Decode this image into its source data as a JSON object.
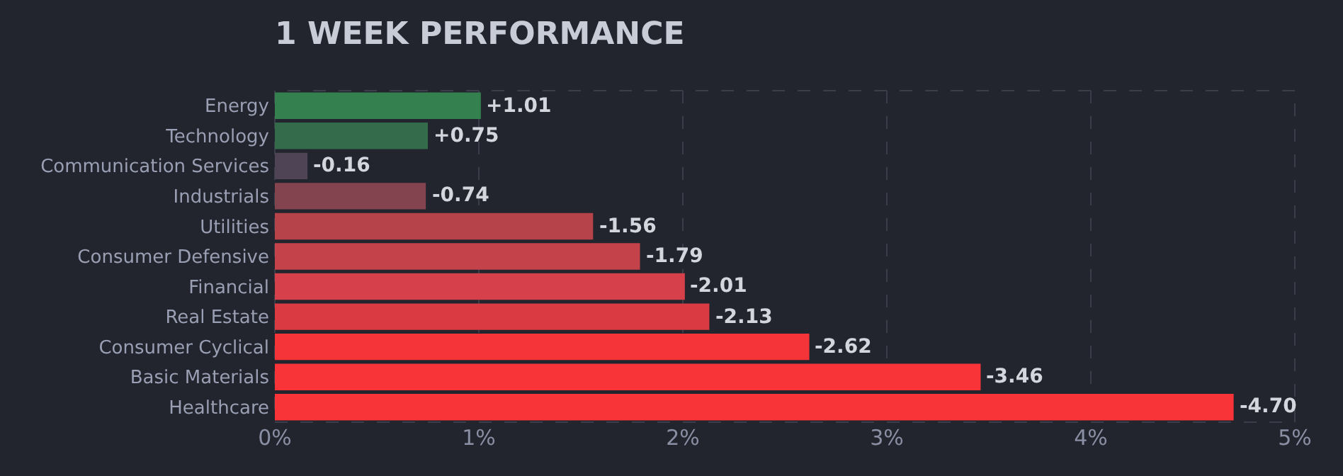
{
  "chart_data": {
    "type": "bar",
    "orientation": "horizontal",
    "title": "1 WEEK PERFORMANCE",
    "categories": [
      "Energy",
      "Technology",
      "Communication Services",
      "Industrials",
      "Utilities",
      "Consumer Defensive",
      "Financial",
      "Real Estate",
      "Consumer Cyclical",
      "Basic Materials",
      "Healthcare"
    ],
    "values": [
      1.01,
      0.75,
      -0.16,
      -0.74,
      -1.56,
      -1.79,
      -2.01,
      -2.13,
      -2.62,
      -3.46,
      -4.7
    ],
    "base": [
      0,
      0,
      0.16,
      0.74,
      1.56,
      1.79,
      2.01,
      2.13,
      2.62,
      3.46,
      4.7
    ],
    "value_labels": [
      "+1.01",
      "+0.75",
      "-0.16",
      "-0.74",
      "-1.56",
      "-1.79",
      "-2.01",
      "-2.13",
      "-2.62",
      "-3.46",
      "-4.70"
    ],
    "colors": [
      "#35804f",
      "#336b4b",
      "#4f4455",
      "#84444f",
      "#b64349",
      "#c4424a",
      "#d5404a",
      "#da3a41",
      "#f53439",
      "#f83439",
      "#f83439"
    ],
    "xlim": [
      0,
      5
    ],
    "xticks": [
      {
        "value": 0,
        "label": "0%"
      },
      {
        "value": 1,
        "label": "1%"
      },
      {
        "value": 2,
        "label": "2%"
      },
      {
        "value": 3,
        "label": "3%"
      },
      {
        "value": 4,
        "label": "4%"
      },
      {
        "value": 5,
        "label": "5%"
      }
    ],
    "grid": "x",
    "legend": false
  }
}
